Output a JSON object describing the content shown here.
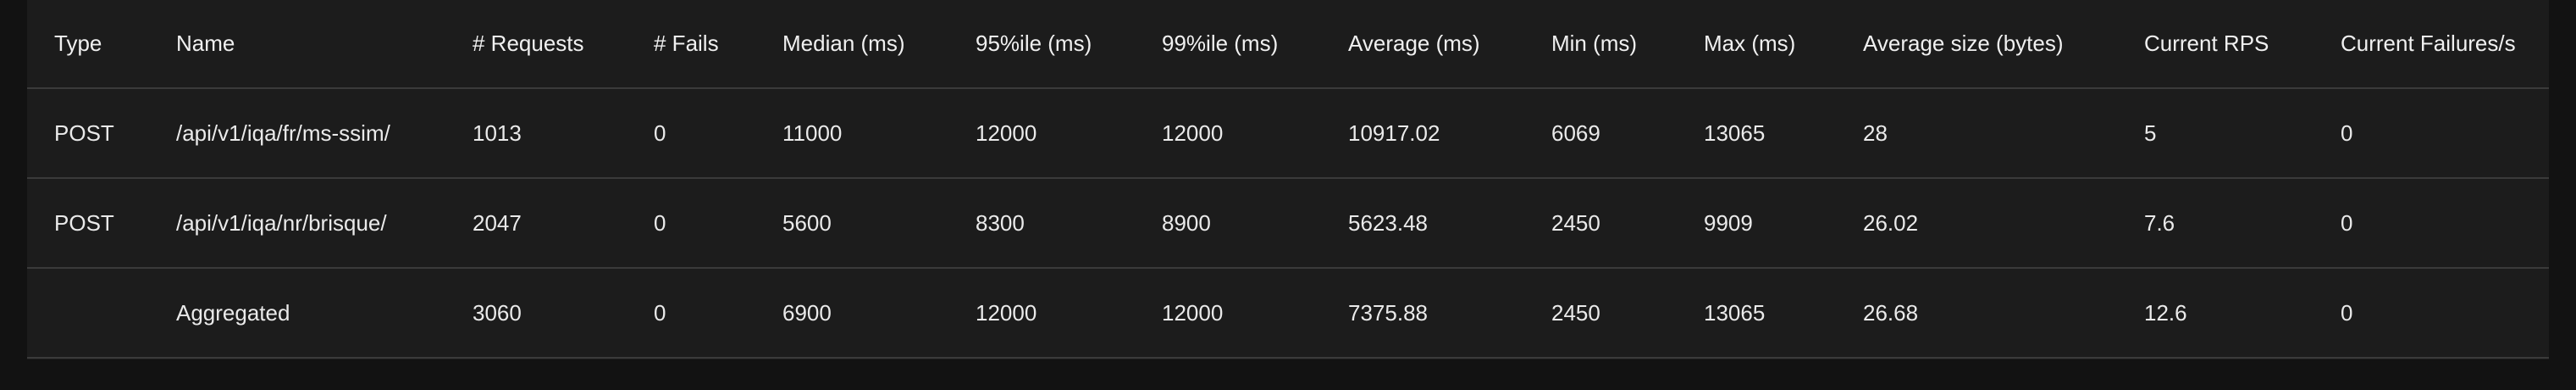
{
  "table": {
    "headers": [
      "Type",
      "Name",
      "# Requests",
      "# Fails",
      "Median (ms)",
      "95%ile (ms)",
      "99%ile (ms)",
      "Average (ms)",
      "Min (ms)",
      "Max (ms)",
      "Average size (bytes)",
      "Current RPS",
      "Current Failures/s"
    ],
    "rows": [
      [
        "POST",
        "/api/v1/iqa/fr/ms-ssim/",
        "1013",
        "0",
        "11000",
        "12000",
        "12000",
        "10917.02",
        "6069",
        "13065",
        "28",
        "5",
        "0"
      ],
      [
        "POST",
        "/api/v1/iqa/nr/brisque/",
        "2047",
        "0",
        "5600",
        "8300",
        "8900",
        "5623.48",
        "2450",
        "9909",
        "26.02",
        "7.6",
        "0"
      ],
      [
        "",
        "Aggregated",
        "3060",
        "0",
        "6900",
        "12000",
        "12000",
        "7375.88",
        "2450",
        "13065",
        "26.68",
        "12.6",
        "0"
      ]
    ]
  }
}
